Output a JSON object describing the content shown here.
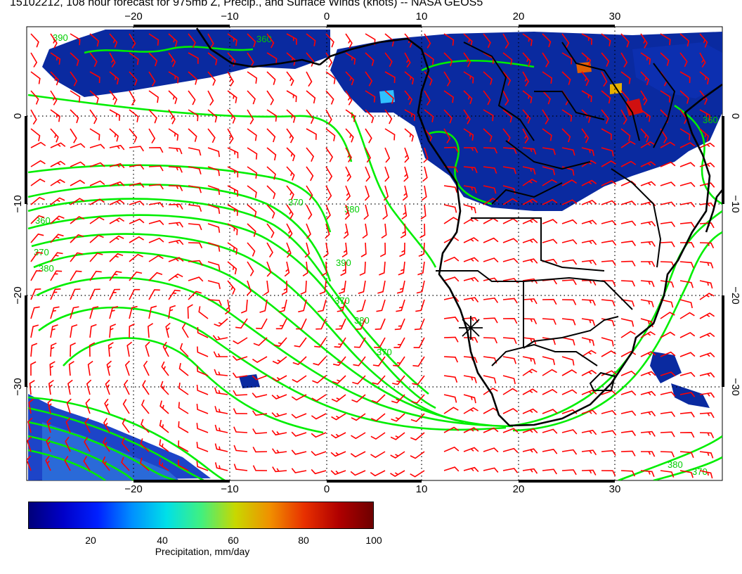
{
  "title": "15102212, 108 hour forecast for 975mb Z, Precip., and Surface Winds (knots) -- NASA GEOS5",
  "map": {
    "lon_ticks": [
      "−20",
      "−10",
      "0",
      "10",
      "20",
      "30"
    ],
    "lat_ticks": [
      "0",
      "−10",
      "−20",
      "−30"
    ],
    "contour_labels": [
      "360",
      "370",
      "380",
      "390",
      "360",
      "370",
      "380",
      "390",
      "370",
      "380",
      "370",
      "360",
      "380",
      "370"
    ],
    "contour_color": "#00ee00",
    "barb_color": "#ff0000",
    "precip_color": "#0a2aa0",
    "marker": "star-cross"
  },
  "colorbar": {
    "ticks": [
      "20",
      "40",
      "60",
      "80",
      "100"
    ],
    "label": "Precipitation, mm/day"
  }
}
